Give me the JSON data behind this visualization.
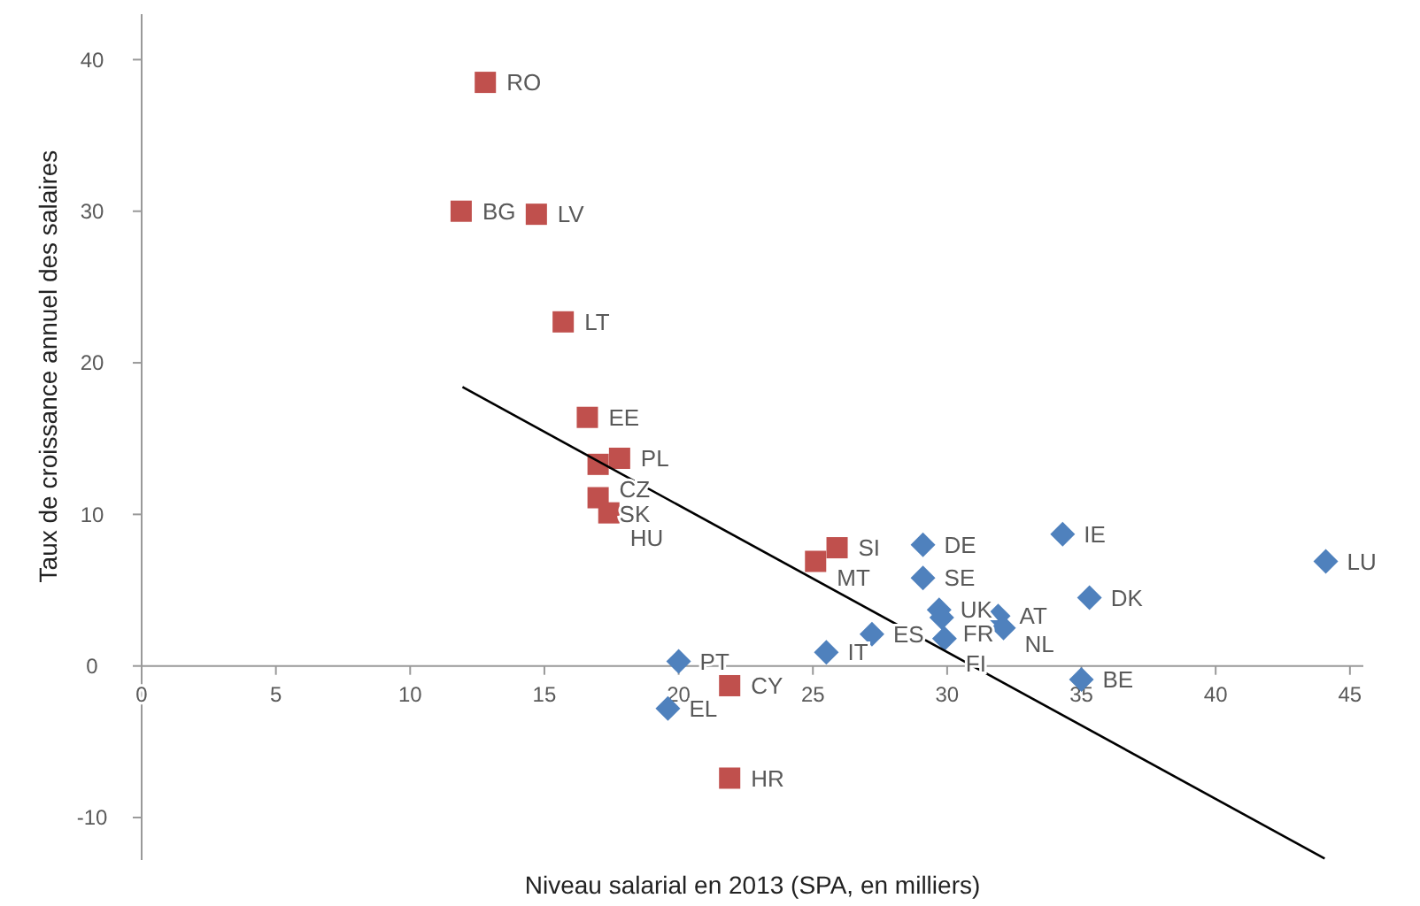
{
  "chart_data": {
    "type": "scatter",
    "xlabel": "Niveau salarial en 2013 (SPA, en milliers)",
    "ylabel": "Taux de croissance annuel des salaires",
    "xlim": [
      0,
      45.5
    ],
    "ylim": [
      -12.8,
      43
    ],
    "xticks": [
      0,
      5,
      10,
      15,
      20,
      25,
      30,
      35,
      40,
      45
    ],
    "yticks": [
      -10,
      0,
      10,
      20,
      30,
      40
    ],
    "grid": false,
    "series": [
      {
        "color": "#c0504d",
        "marker": "square",
        "x": [
          12.8,
          11.9,
          14.7,
          15.7,
          16.6,
          17.8,
          17.0,
          17.0,
          17.4,
          25.9,
          25.1,
          21.9,
          21.9
        ],
        "values": [
          38.5,
          30.0,
          29.8,
          22.7,
          16.4,
          13.7,
          13.3,
          11.1,
          10.1,
          7.8,
          6.9,
          -1.3,
          -7.4
        ]
      },
      {
        "color": "#4f81bd",
        "marker": "diamond",
        "x": [
          20.0,
          19.6,
          25.5,
          27.2,
          29.1,
          29.1,
          29.7,
          29.8,
          29.9,
          31.9,
          32.1,
          34.3,
          35.3,
          35.0,
          44.1
        ],
        "values": [
          0.3,
          -2.8,
          0.9,
          2.1,
          8.0,
          5.8,
          3.7,
          3.2,
          1.8,
          3.3,
          2.5,
          8.7,
          4.5,
          -0.9,
          6.9
        ]
      },
      {
        "type": "line",
        "color": "#000000",
        "marker": "none",
        "x": [
          11.95,
          44.06
        ],
        "values": [
          18.4,
          -12.7
        ]
      }
    ],
    "annotations": [
      {
        "text": "RO",
        "x": 12.8,
        "y": 38.5
      },
      {
        "text": "BG",
        "x": 11.9,
        "y": 30.0
      },
      {
        "text": "LV",
        "x": 14.7,
        "y": 29.8
      },
      {
        "text": "LT",
        "x": 15.7,
        "y": 22.7
      },
      {
        "text": "EE",
        "x": 16.6,
        "y": 16.4
      },
      {
        "text": "PL",
        "x": 17.8,
        "y": 13.7
      },
      {
        "text": "CZ",
        "x": 17.0,
        "y": 13.3
      },
      {
        "text": "SK",
        "x": 17.0,
        "y": 11.1
      },
      {
        "text": "HU",
        "x": 17.4,
        "y": 10.1
      },
      {
        "text": "SI",
        "x": 25.9,
        "y": 7.8
      },
      {
        "text": "MT",
        "x": 25.1,
        "y": 6.9
      },
      {
        "text": "CY",
        "x": 21.9,
        "y": -1.3
      },
      {
        "text": "HR",
        "x": 21.9,
        "y": -7.4
      },
      {
        "text": "PT",
        "x": 20.0,
        "y": 0.3
      },
      {
        "text": "EL",
        "x": 19.6,
        "y": -2.8
      },
      {
        "text": "IT",
        "x": 25.5,
        "y": 0.9
      },
      {
        "text": "ES",
        "x": 27.2,
        "y": 2.1
      },
      {
        "text": "DE",
        "x": 29.1,
        "y": 8.0
      },
      {
        "text": "SE",
        "x": 29.1,
        "y": 5.8
      },
      {
        "text": "UK",
        "x": 29.7,
        "y": 3.7
      },
      {
        "text": "FR",
        "x": 29.8,
        "y": 3.2
      },
      {
        "text": "FI",
        "x": 29.9,
        "y": 1.8
      },
      {
        "text": "AT",
        "x": 31.9,
        "y": 3.3
      },
      {
        "text": "NL",
        "x": 32.1,
        "y": 2.5
      },
      {
        "text": "IE",
        "x": 34.3,
        "y": 8.7
      },
      {
        "text": "DK",
        "x": 35.3,
        "y": 4.5
      },
      {
        "text": "BE",
        "x": 35.0,
        "y": -0.9
      },
      {
        "text": "LU",
        "x": 44.1,
        "y": 6.9
      }
    ]
  }
}
